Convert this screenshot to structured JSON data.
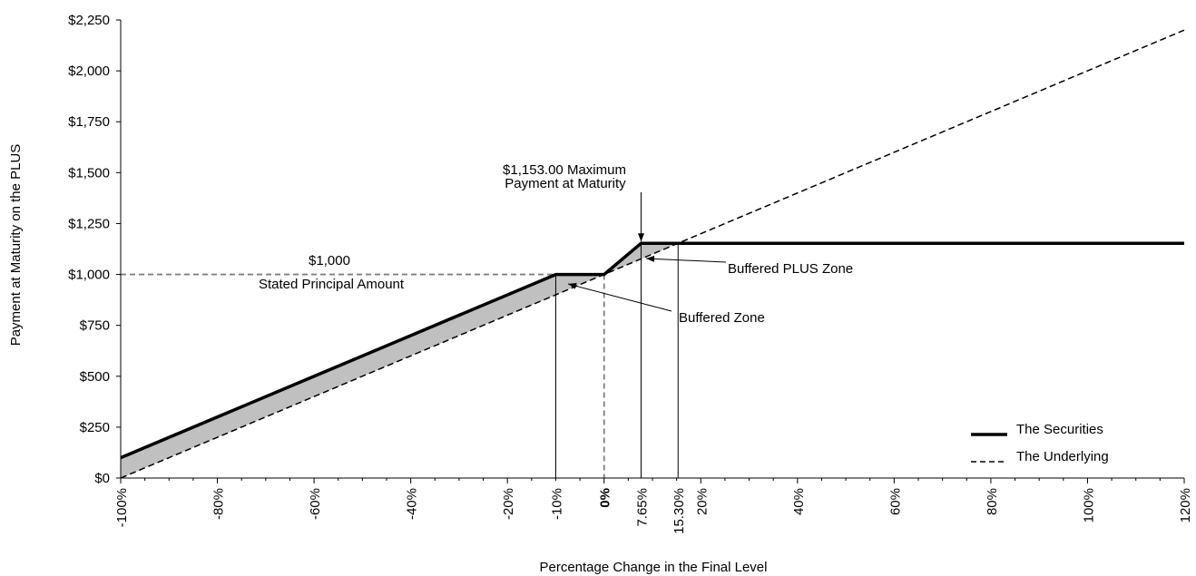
{
  "chart_data": {
    "type": "line",
    "title": "",
    "xlabel": "Percentage Change in the Final Level",
    "ylabel": "Payment at Maturity on the PLUS",
    "xlim": [
      -100,
      120
    ],
    "ylim": [
      0,
      2250
    ],
    "y_ticks": [
      0,
      250,
      500,
      750,
      1000,
      1250,
      1500,
      1750,
      2000,
      2250
    ],
    "y_tick_labels": [
      "$0",
      "$250",
      "$500",
      "$750",
      "$1,000",
      "$1,250",
      "$1,500",
      "$1,750",
      "$2,000",
      "$2,250"
    ],
    "x_ticks": [
      {
        "value": -100,
        "label": "-100%",
        "bold": false
      },
      {
        "value": -80,
        "label": "-80%",
        "bold": false
      },
      {
        "value": -60,
        "label": "-60%",
        "bold": false
      },
      {
        "value": -40,
        "label": "-40%",
        "bold": false
      },
      {
        "value": -20,
        "label": "-20%",
        "bold": false
      },
      {
        "value": -10,
        "label": "-10%",
        "bold": false
      },
      {
        "value": 0,
        "label": "0%",
        "bold": true
      },
      {
        "value": 7.65,
        "label": "7.65%",
        "bold": false
      },
      {
        "value": 15.3,
        "label": "15.30%",
        "bold": false
      },
      {
        "value": 20,
        "label": "20%",
        "bold": false
      },
      {
        "value": 40,
        "label": "40%",
        "bold": false
      },
      {
        "value": 60,
        "label": "60%",
        "bold": false
      },
      {
        "value": 80,
        "label": "80%",
        "bold": false
      },
      {
        "value": 100,
        "label": "100%",
        "bold": false
      },
      {
        "value": 120,
        "label": "120%",
        "bold": false
      }
    ],
    "series": [
      {
        "name": "The Securities",
        "style": "solid-thick",
        "color": "#000000",
        "points": [
          [
            -100,
            100
          ],
          [
            -10,
            1000
          ],
          [
            0,
            1000
          ],
          [
            7.65,
            1153
          ],
          [
            120,
            1153
          ]
        ]
      },
      {
        "name": "The Underlying",
        "style": "dashed",
        "color": "#000000",
        "points": [
          [
            -100,
            0
          ],
          [
            120,
            2200
          ]
        ]
      }
    ],
    "shaded_regions": [
      {
        "name": "Buffered Zone",
        "color": "#c0c0c0",
        "from": -100,
        "to": 0
      },
      {
        "name": "Buffered PLUS Zone",
        "color": "#c0c0c0",
        "from": 0,
        "to": 15.3
      }
    ],
    "reference_lines": [
      {
        "kind": "horizontal-dashed",
        "y": 1000,
        "x_to": 0,
        "color": "#808080"
      },
      {
        "kind": "vertical-dashed",
        "x": 0,
        "color": "#808080"
      },
      {
        "kind": "vertical-thin",
        "x": -10,
        "color": "#000000"
      },
      {
        "kind": "vertical-thin",
        "x": 7.65,
        "color": "#000000"
      },
      {
        "kind": "vertical-thin",
        "x": 15.3,
        "color": "#000000"
      }
    ],
    "annotations": {
      "stated_principal_value": "$1,000",
      "stated_principal_label": "Stated Principal Amount",
      "max_payment_line1": "$1,153.00 Maximum",
      "max_payment_line2": "Payment at Maturity",
      "buffered_plus_zone": "Buffered PLUS Zone",
      "buffered_zone": "Buffered Zone"
    },
    "legend": {
      "placement": "bottom-right",
      "entries": [
        {
          "label": "The Securities",
          "style": "solid-thick"
        },
        {
          "label": "The Underlying",
          "style": "dashed"
        }
      ]
    },
    "grid": false
  }
}
